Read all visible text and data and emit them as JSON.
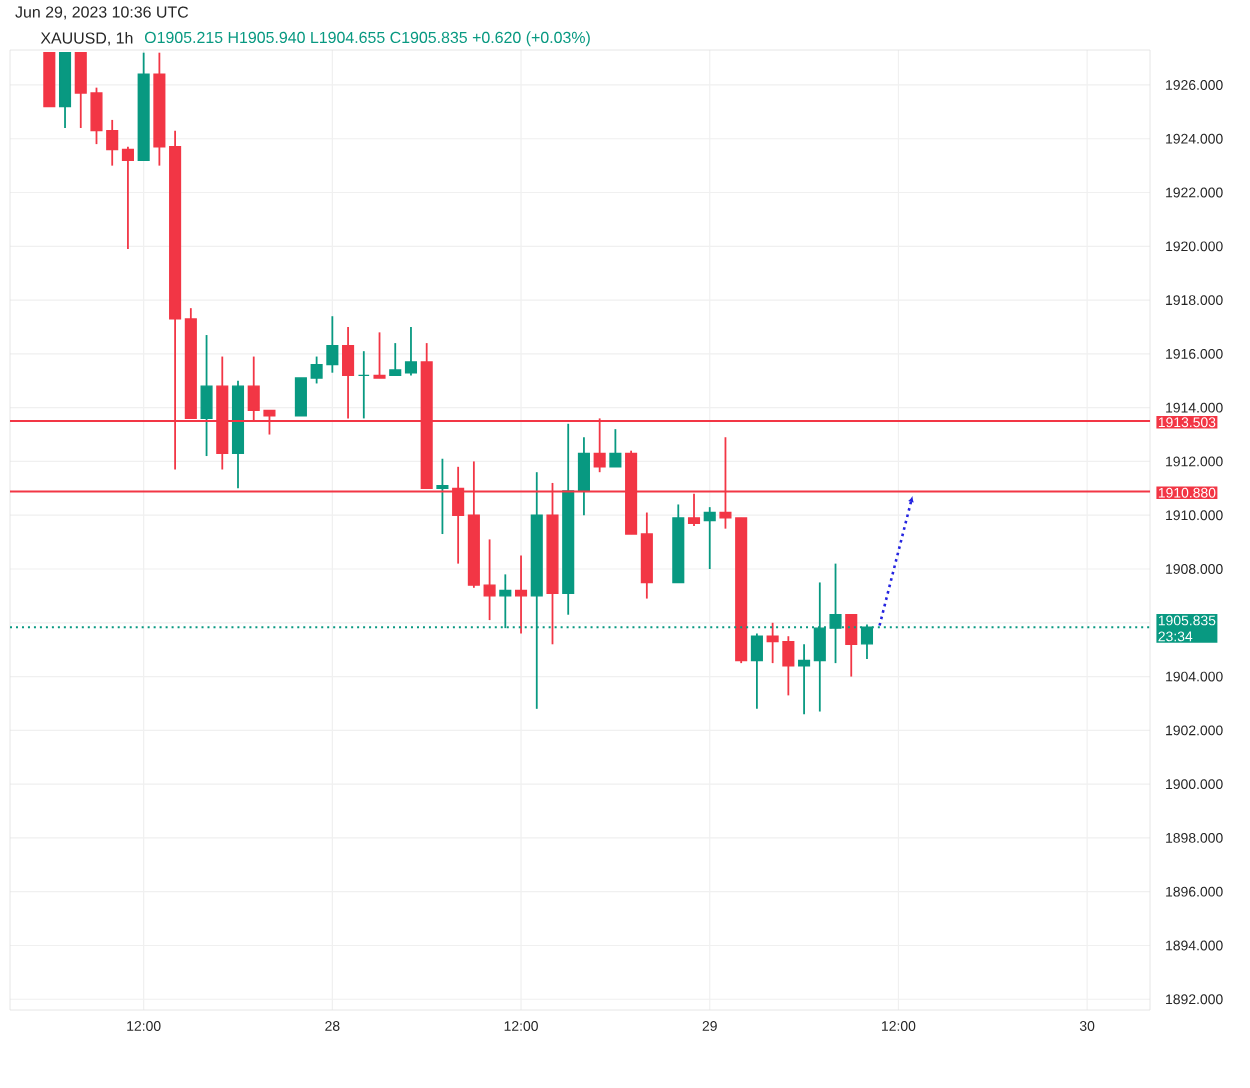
{
  "chart_data": {
    "type": "candlestick",
    "title": "XAUUSD, 1h",
    "subtitle": "Jun 29, 2023 10:36 UTC",
    "annotations": [
      "O1905.215  H1905.940  L1904.655  C1905.835  +0.620 (+0.03%)",
      "23:34"
    ],
    "x": [
      "2023-06-27T06:00",
      "2023-06-27T07:00",
      "2023-06-27T08:00",
      "2023-06-27T09:00",
      "2023-06-27T10:00",
      "2023-06-27T11:00",
      "2023-06-27T12:00",
      "2023-06-27T13:00",
      "2023-06-27T14:00",
      "2023-06-27T15:00",
      "2023-06-27T16:00",
      "2023-06-27T17:00",
      "2023-06-27T18:00",
      "2023-06-27T19:00",
      "2023-06-27T20:00",
      "2023-06-27T22:00",
      "2023-06-27T23:00",
      "2023-06-28T00:00",
      "2023-06-28T01:00",
      "2023-06-28T02:00",
      "2023-06-28T03:00",
      "2023-06-28T04:00",
      "2023-06-28T05:00",
      "2023-06-28T06:00",
      "2023-06-28T07:00",
      "2023-06-28T08:00",
      "2023-06-28T09:00",
      "2023-06-28T10:00",
      "2023-06-28T11:00",
      "2023-06-28T12:00",
      "2023-06-28T13:00",
      "2023-06-28T14:00",
      "2023-06-28T15:00",
      "2023-06-28T16:00",
      "2023-06-28T17:00",
      "2023-06-28T18:00",
      "2023-06-28T19:00",
      "2023-06-28T20:00",
      "2023-06-28T22:00",
      "2023-06-28T23:00",
      "2023-06-29T00:00",
      "2023-06-29T01:00",
      "2023-06-29T02:00",
      "2023-06-29T03:00",
      "2023-06-29T04:00",
      "2023-06-29T05:00",
      "2023-06-29T06:00",
      "2023-06-29T07:00",
      "2023-06-29T08:00",
      "2023-06-29T09:00",
      "2023-06-29T10:00"
    ],
    "ohlc": [
      [
        1927.2,
        1927.2,
        1925.2,
        1925.2
      ],
      [
        1925.2,
        1927.2,
        1924.4,
        1927.2
      ],
      [
        1927.2,
        1927.2,
        1924.4,
        1925.7
      ],
      [
        1925.7,
        1925.9,
        1923.8,
        1924.3
      ],
      [
        1924.3,
        1924.7,
        1923.0,
        1923.6
      ],
      [
        1923.6,
        1923.7,
        1919.9,
        1923.2
      ],
      [
        1923.2,
        1927.2,
        1923.2,
        1926.4
      ],
      [
        1926.4,
        1927.2,
        1923.0,
        1923.7
      ],
      [
        1923.7,
        1924.3,
        1911.7,
        1917.3
      ],
      [
        1917.3,
        1917.7,
        1913.6,
        1913.6
      ],
      [
        1913.6,
        1916.7,
        1912.2,
        1914.8
      ],
      [
        1914.8,
        1915.9,
        1911.7,
        1912.3
      ],
      [
        1912.3,
        1915.0,
        1911.0,
        1914.8
      ],
      [
        1914.8,
        1915.9,
        1913.5,
        1913.9
      ],
      [
        1913.9,
        1913.9,
        1913.0,
        1913.7
      ],
      [
        1913.7,
        1915.1,
        1913.7,
        1915.1
      ],
      [
        1915.1,
        1915.9,
        1914.9,
        1915.6
      ],
      [
        1915.6,
        1917.4,
        1915.3,
        1916.3
      ],
      [
        1916.3,
        1917.0,
        1913.6,
        1915.2
      ],
      [
        1915.2,
        1916.1,
        1913.6,
        1915.2
      ],
      [
        1915.2,
        1916.8,
        1915.1,
        1915.1
      ],
      [
        1915.2,
        1916.4,
        1915.2,
        1915.4
      ],
      [
        1915.3,
        1917.0,
        1915.2,
        1915.7
      ],
      [
        1915.7,
        1916.4,
        1911.0,
        1911.0
      ],
      [
        1911.0,
        1912.1,
        1909.3,
        1911.1
      ],
      [
        1911.0,
        1911.8,
        1908.2,
        1910.0
      ],
      [
        1910.0,
        1912.0,
        1907.3,
        1907.4
      ],
      [
        1907.4,
        1909.1,
        1906.1,
        1907.0
      ],
      [
        1907.0,
        1907.8,
        1905.8,
        1907.2
      ],
      [
        1907.2,
        1908.5,
        1905.6,
        1907.0
      ],
      [
        1907.0,
        1911.6,
        1902.8,
        1910.0
      ],
      [
        1910.0,
        1911.2,
        1905.2,
        1907.1
      ],
      [
        1907.1,
        1913.4,
        1906.3,
        1910.9
      ],
      [
        1910.9,
        1912.9,
        1910.0,
        1912.3
      ],
      [
        1912.3,
        1913.6,
        1911.6,
        1911.8
      ],
      [
        1911.8,
        1913.2,
        1911.8,
        1912.3
      ],
      [
        1912.3,
        1912.4,
        1909.3,
        1909.3
      ],
      [
        1909.3,
        1910.1,
        1906.9,
        1907.5
      ],
      [
        1907.5,
        1910.4,
        1907.5,
        1909.9
      ],
      [
        1909.9,
        1910.8,
        1909.6,
        1909.7
      ],
      [
        1909.8,
        1910.3,
        1908.0,
        1910.1
      ],
      [
        1910.1,
        1912.9,
        1909.5,
        1909.9
      ],
      [
        1909.9,
        1909.9,
        1904.5,
        1904.6
      ],
      [
        1904.6,
        1905.6,
        1902.8,
        1905.5
      ],
      [
        1905.5,
        1906.0,
        1904.5,
        1905.3
      ],
      [
        1905.3,
        1905.5,
        1903.3,
        1904.4
      ],
      [
        1904.4,
        1905.2,
        1902.6,
        1904.6
      ],
      [
        1904.6,
        1907.5,
        1902.7,
        1905.8
      ],
      [
        1905.8,
        1908.2,
        1904.5,
        1906.3
      ],
      [
        1906.3,
        1906.3,
        1904.0,
        1905.2
      ],
      [
        1905.215,
        1905.94,
        1904.655,
        1905.835
      ]
    ],
    "colors": [
      "#f23645",
      "#089981",
      "#f23645",
      "#f23645",
      "#f23645",
      "#f23645",
      "#089981",
      "#f23645",
      "#f23645",
      "#f23645",
      "#089981",
      "#f23645",
      "#089981",
      "#f23645",
      "#f23645",
      "#089981",
      "#089981",
      "#089981",
      "#f23645",
      "#089981",
      "#f23645",
      "#089981",
      "#089981",
      "#f23645",
      "#089981",
      "#f23645",
      "#f23645",
      "#f23645",
      "#089981",
      "#f23645",
      "#089981",
      "#f23645",
      "#089981",
      "#089981",
      "#f23645",
      "#089981",
      "#f23645",
      "#f23645",
      "#089981",
      "#f23645",
      "#089981",
      "#f23645",
      "#f23645",
      "#089981",
      "#f23645",
      "#f23645",
      "#089981",
      "#089981",
      "#089981",
      "#f23645",
      "#089981"
    ],
    "series": [
      {
        "type": "line",
        "x": [
          "2023-06-29T10:48",
          "2023-06-29T12:48"
        ],
        "values": [
          1905.9,
          1910.5
        ],
        "color": "#2424e0",
        "line_style": "dotted"
      }
    ],
    "ref_lines": [
      {
        "axis": "y",
        "value": 1913.503,
        "label": "1913.503",
        "color": "#f23645",
        "line_style": "solid"
      },
      {
        "axis": "y",
        "value": 1910.88,
        "label": "1910.880",
        "color": "#f23645",
        "line_style": "solid"
      },
      {
        "axis": "y",
        "value": 1905.835,
        "label": "1905.835",
        "color": "#089981",
        "line_style": "dotted"
      }
    ],
    "xlim": [
      "2023-06-27T03:30",
      "2023-06-30T04:00"
    ],
    "xticks": [
      {
        "value": "2023-06-27T12:00",
        "label": "12:00"
      },
      {
        "value": "2023-06-28",
        "label": "28"
      },
      {
        "value": "2023-06-28T12:00",
        "label": "12:00"
      },
      {
        "value": "2023-06-29",
        "label": "29"
      },
      {
        "value": "2023-06-29T12:00",
        "label": "12:00"
      },
      {
        "value": "2023-06-30",
        "label": "30"
      }
    ],
    "ylim": [
      1891.6,
      1927.3
    ],
    "yticks": [
      {
        "value": 1892,
        "label": "1892.000"
      },
      {
        "value": 1894,
        "label": "1894.000"
      },
      {
        "value": 1896,
        "label": "1896.000"
      },
      {
        "value": 1898,
        "label": "1898.000"
      },
      {
        "value": 1900,
        "label": "1900.000"
      },
      {
        "value": 1902,
        "label": "1902.000"
      },
      {
        "value": 1904,
        "label": "1904.000"
      },
      {
        "value": 1906,
        "label": null
      },
      {
        "value": 1908,
        "label": "1908.000"
      },
      {
        "value": 1910,
        "label": "1910.000"
      },
      {
        "value": 1912,
        "label": "1912.000"
      },
      {
        "value": 1914,
        "label": "1914.000"
      },
      {
        "value": 1916,
        "label": "1916.000"
      },
      {
        "value": 1918,
        "label": "1918.000"
      },
      {
        "value": 1920,
        "label": "1920.000"
      },
      {
        "value": 1922,
        "label": "1922.000"
      },
      {
        "value": 1924,
        "label": "1924.000"
      },
      {
        "value": 1926,
        "label": "1926.000"
      }
    ],
    "grid": true
  }
}
